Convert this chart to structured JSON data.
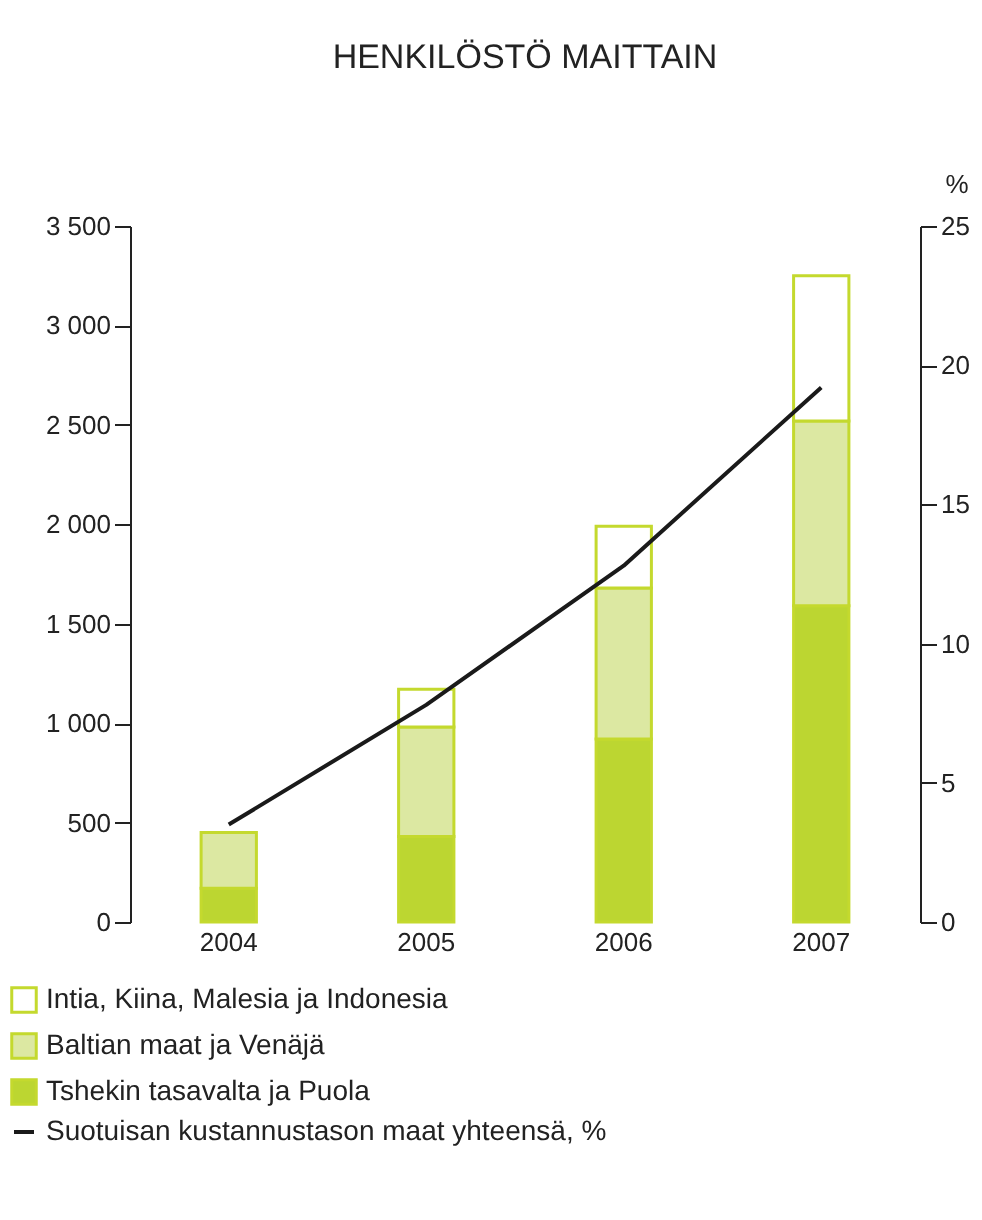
{
  "chart_data": {
    "type": "bar",
    "title": "HENKILÖSTÖ MAITTAIN",
    "stacked": true,
    "legend": "bottom",
    "grid": false,
    "y2label": "%",
    "categories": [
      "2004",
      "2005",
      "2006",
      "2007"
    ],
    "ylim": [
      0,
      3500
    ],
    "yticks": [
      0,
      {
        "value": 500,
        "label": "500"
      },
      {
        "value": 1000,
        "label": "1 000"
      },
      {
        "value": 1500,
        "label": "1 500"
      },
      {
        "value": 2000,
        "label": "2 000"
      },
      {
        "value": 2500,
        "label": "2 500"
      },
      {
        "value": 3000,
        "label": "3 000"
      },
      {
        "value": 3500,
        "label": "3 500"
      }
    ],
    "y2lim": [
      0,
      25
    ],
    "y2ticks": [
      0,
      5,
      10,
      15,
      20,
      25
    ],
    "series": [
      {
        "name": "Tshekin tasavalta ja Puola",
        "color": "#bcd631",
        "values": [
          170,
          430,
          920,
          1590
        ]
      },
      {
        "name": "Baltian maat ja Venäjä",
        "color": "#dce8a2",
        "values": [
          280,
          550,
          760,
          930
        ]
      },
      {
        "name": "Intia, Kiina, Malesia ja Indonesia",
        "color": "#ffffff",
        "values": [
          0,
          190,
          310,
          730
        ]
      },
      {
        "name": "Suotuisan kustannustason maat yhteensä, %",
        "type": "line",
        "axis": "y2",
        "color": "#1a1a1a",
        "values": [
          3.5,
          7.8,
          12.8,
          19.2
        ]
      }
    ]
  }
}
